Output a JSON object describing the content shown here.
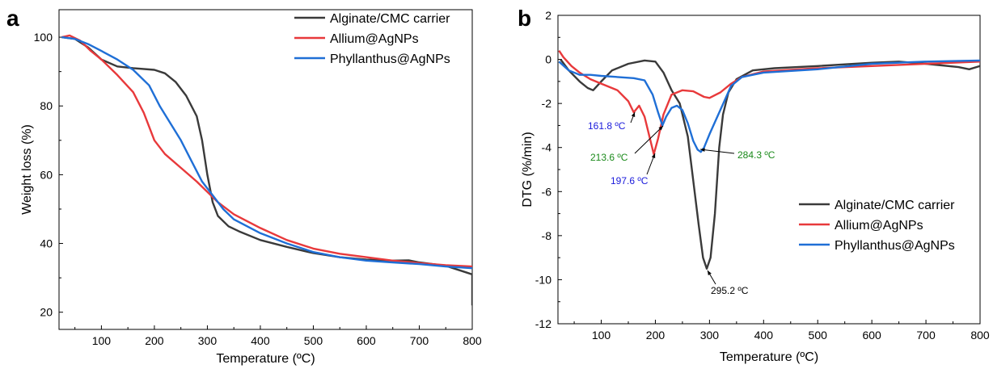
{
  "panels": {
    "a": {
      "letter": "a"
    },
    "b": {
      "letter": "b"
    }
  },
  "colors": {
    "alginate": "#3a3a3a",
    "allium": "#e8393b",
    "phyllanthus": "#1f6fd6",
    "annotation_blue": "#1a1adb",
    "annotation_green": "#1a8a1a",
    "annotation_black": "#000000"
  },
  "chart_data": [
    {
      "type": "line",
      "panel": "a",
      "xlabel": "Temperature (ºC)",
      "ylabel": "Weight loss (%)",
      "xlim": [
        20,
        800
      ],
      "ylim": [
        15,
        108
      ],
      "xticks": [
        100,
        200,
        300,
        400,
        500,
        600,
        700,
        800
      ],
      "yticks": [
        20,
        40,
        60,
        80,
        100
      ],
      "legend_position": "top-right",
      "series": [
        {
          "name": "Alginate/CMC carrier",
          "color": "#3a3a3a",
          "x": [
            25,
            50,
            75,
            100,
            130,
            160,
            200,
            220,
            240,
            260,
            280,
            290,
            300,
            310,
            320,
            340,
            360,
            400,
            450,
            500,
            550,
            600,
            650,
            680,
            700,
            750,
            790,
            800,
            800
          ],
          "y": [
            100,
            99.5,
            97,
            93.5,
            91.5,
            91,
            90.5,
            89.5,
            87,
            83,
            77,
            70,
            60,
            52,
            48,
            45,
            43.5,
            41,
            39,
            37.2,
            36,
            35.3,
            35,
            35.1,
            34.5,
            33.5,
            31.5,
            31,
            22
          ]
        },
        {
          "name": "Allium@AgNPs",
          "color": "#e8393b",
          "x": [
            25,
            40,
            60,
            80,
            100,
            130,
            160,
            180,
            200,
            220,
            250,
            280,
            300,
            320,
            350,
            400,
            450,
            500,
            550,
            600,
            650,
            700,
            750,
            800
          ],
          "y": [
            100,
            100.5,
            99,
            96,
            93.5,
            89,
            84,
            78,
            70,
            66,
            62,
            58,
            55,
            52,
            48.5,
            44.5,
            41,
            38.5,
            37,
            36,
            35,
            34.3,
            33.7,
            33.3
          ]
        },
        {
          "name": "Phyllanthus@AgNPs",
          "color": "#1f6fd6",
          "x": [
            25,
            50,
            75,
            100,
            130,
            160,
            190,
            210,
            230,
            250,
            270,
            290,
            310,
            330,
            350,
            400,
            450,
            500,
            550,
            600,
            650,
            700,
            750,
            800
          ],
          "y": [
            100,
            99.5,
            98,
            96,
            93.5,
            90.5,
            86,
            80,
            75,
            70,
            64,
            58,
            54,
            50,
            47,
            43,
            40,
            37.5,
            36,
            35,
            34.5,
            34,
            33.3,
            32.8
          ]
        }
      ]
    },
    {
      "type": "line",
      "panel": "b",
      "xlabel": "Temperature (ºC)",
      "ylabel": "DTG (%/min)",
      "xlim": [
        20,
        800
      ],
      "ylim": [
        -12,
        2
      ],
      "xticks": [
        100,
        200,
        300,
        400,
        500,
        600,
        700,
        800
      ],
      "yticks": [
        -12,
        -10,
        -8,
        -6,
        -4,
        -2,
        0,
        2
      ],
      "legend_position": "center-right",
      "series": [
        {
          "name": "Alginate/CMC carrier",
          "color": "#3a3a3a",
          "x": [
            25,
            40,
            60,
            75,
            85,
            100,
            120,
            150,
            180,
            200,
            215,
            230,
            245,
            260,
            270,
            280,
            288,
            295,
            302,
            310,
            318,
            325,
            335,
            350,
            380,
            420,
            500,
            600,
            650,
            700,
            760,
            780,
            800
          ],
          "y": [
            0,
            -0.5,
            -1.0,
            -1.3,
            -1.4,
            -1.0,
            -0.5,
            -0.2,
            -0.05,
            -0.1,
            -0.6,
            -1.4,
            -2.0,
            -3.5,
            -5.5,
            -7.5,
            -9.0,
            -9.5,
            -9.0,
            -7.0,
            -4.0,
            -2.5,
            -1.5,
            -0.9,
            -0.5,
            -0.4,
            -0.3,
            -0.15,
            -0.1,
            -0.2,
            -0.35,
            -0.45,
            -0.3
          ]
        },
        {
          "name": "Allium@AgNPs",
          "color": "#e8393b",
          "x": [
            22,
            30,
            45,
            60,
            80,
            100,
            130,
            150,
            160,
            170,
            180,
            190,
            197,
            205,
            215,
            230,
            250,
            270,
            290,
            300,
            320,
            340,
            360,
            400,
            500,
            600,
            700,
            800
          ],
          "y": [
            0.4,
            0.1,
            -0.3,
            -0.6,
            -0.9,
            -1.1,
            -1.4,
            -1.9,
            -2.4,
            -2.1,
            -2.6,
            -3.6,
            -4.3,
            -3.6,
            -2.5,
            -1.6,
            -1.4,
            -1.45,
            -1.7,
            -1.75,
            -1.5,
            -1.1,
            -0.8,
            -0.55,
            -0.4,
            -0.3,
            -0.2,
            -0.1
          ]
        },
        {
          "name": "Phyllanthus@AgNPs",
          "color": "#1f6fd6",
          "x": [
            22,
            40,
            60,
            80,
            100,
            130,
            160,
            180,
            195,
            205,
            213,
            220,
            230,
            240,
            250,
            260,
            270,
            278,
            284,
            290,
            300,
            320,
            340,
            360,
            400,
            500,
            600,
            700,
            800
          ],
          "y": [
            -0.1,
            -0.5,
            -0.7,
            -0.7,
            -0.75,
            -0.8,
            -0.85,
            -0.95,
            -1.6,
            -2.4,
            -3.0,
            -2.6,
            -2.2,
            -2.1,
            -2.3,
            -2.9,
            -3.7,
            -4.1,
            -4.2,
            -4.0,
            -3.4,
            -2.3,
            -1.2,
            -0.8,
            -0.6,
            -0.45,
            -0.2,
            -0.1,
            -0.05
          ]
        }
      ],
      "annotations": [
        {
          "text": "161.8 ºC",
          "x": 161.8,
          "y": -2.3,
          "color": "#1a1adb"
        },
        {
          "text": "213.6 ºC",
          "x": 213.6,
          "y": -3.0,
          "color": "#1a8a1a"
        },
        {
          "text": "197.6 ºC",
          "x": 197.6,
          "y": -4.3,
          "color": "#1a1adb"
        },
        {
          "text": "284.3 ºC",
          "x": 284.3,
          "y": -4.2,
          "color": "#1a8a1a"
        },
        {
          "text": "295.2 ºC",
          "x": 295.2,
          "y": -9.5,
          "color": "#000000"
        }
      ]
    }
  ]
}
